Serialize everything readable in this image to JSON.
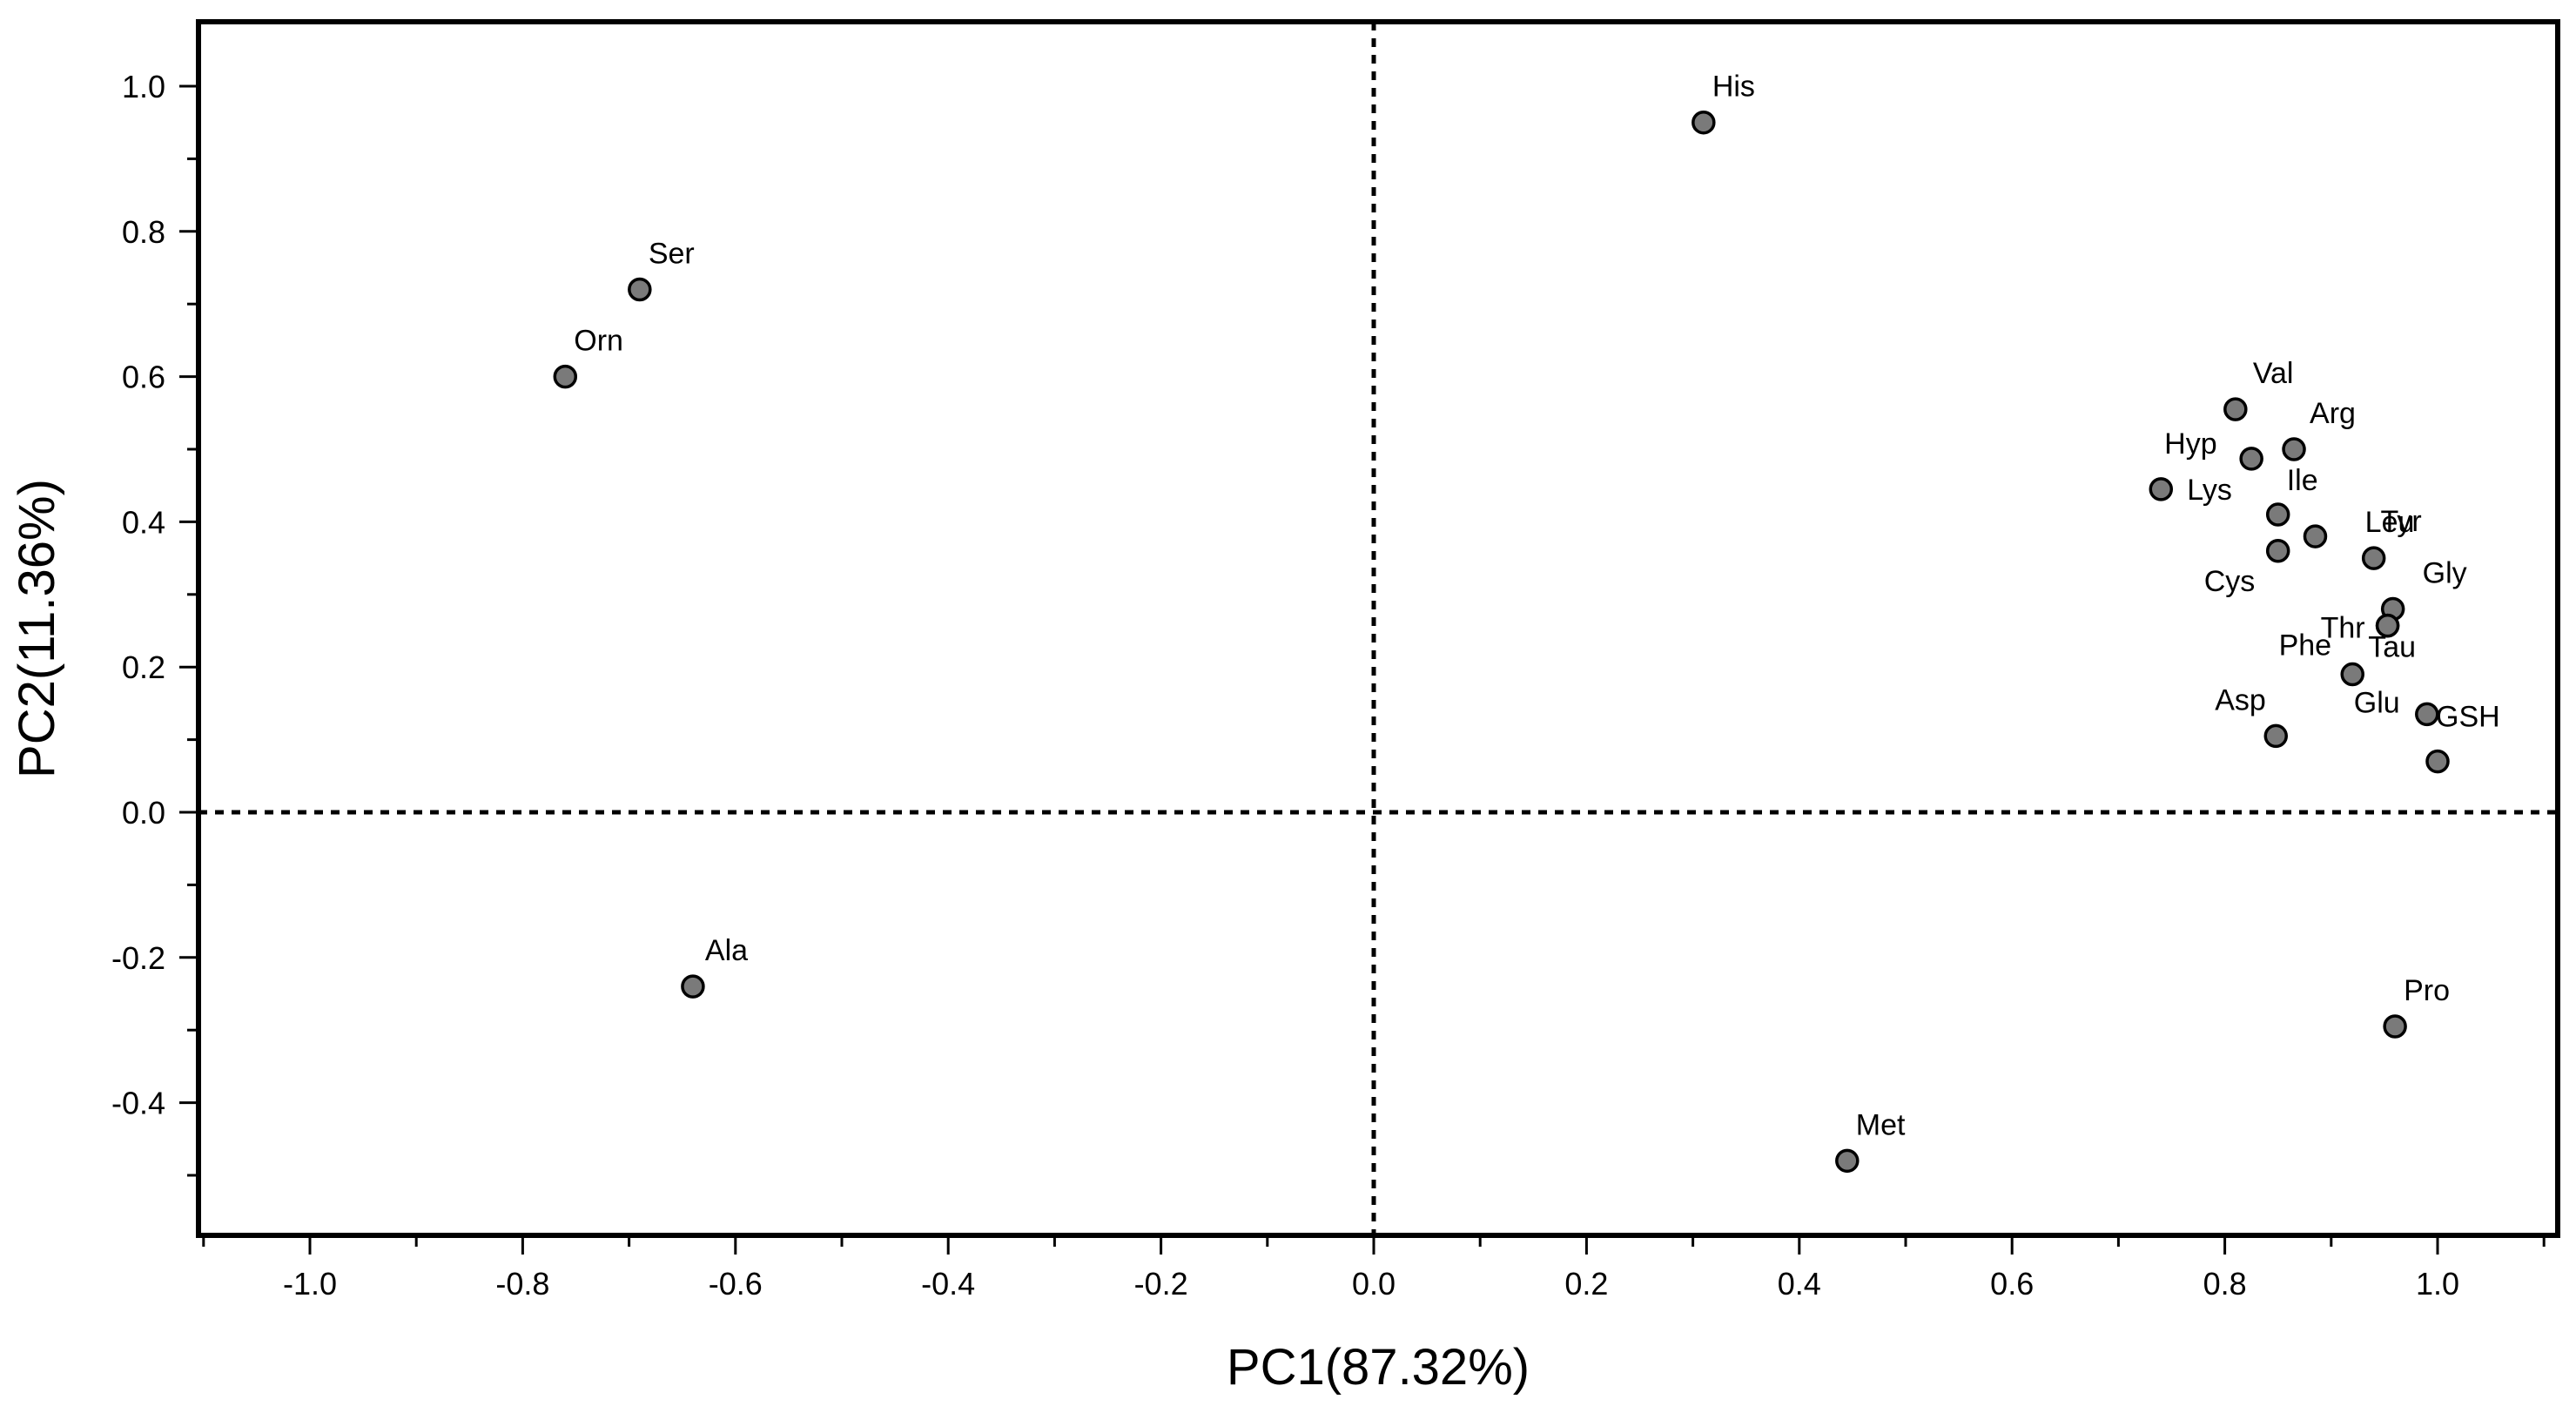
{
  "chart_data": {
    "type": "scatter",
    "xlabel": "PC1(87.32%)",
    "ylabel": "PC2(11.36%)",
    "xlim": [
      -1.1,
      1.1
    ],
    "ylim": [
      -0.58,
      1.08
    ],
    "x_major_ticks": [
      -1.0,
      -0.8,
      -0.6,
      -0.4,
      -0.2,
      0.0,
      0.2,
      0.4,
      0.6,
      0.8,
      1.0
    ],
    "x_tick_labels": [
      "-1.0",
      "-0.8",
      "-0.6",
      "-0.4",
      "-0.2",
      "0.0",
      "0.2",
      "0.4",
      "0.6",
      "0.8",
      "1.0"
    ],
    "y_major_ticks": [
      -0.4,
      -0.2,
      0.0,
      0.2,
      0.4,
      0.6,
      0.8,
      1.0
    ],
    "y_tick_labels": [
      "-0.4",
      "-0.2",
      "0.0",
      "0.2",
      "0.4",
      "0.6",
      "0.8",
      "1.0"
    ],
    "reference_lines": {
      "x": 0,
      "y": 0,
      "style": "dotted"
    },
    "grid": false,
    "legend": "none",
    "marker_color": "#7a7a7a",
    "points": [
      {
        "label": "His",
        "x": 0.31,
        "y": 0.95
      },
      {
        "label": "Ser",
        "x": -0.69,
        "y": 0.72
      },
      {
        "label": "Orn",
        "x": -0.76,
        "y": 0.6
      },
      {
        "label": "Val",
        "x": 0.81,
        "y": 0.555
      },
      {
        "label": "Arg",
        "x": 0.865,
        "y": 0.5
      },
      {
        "label": "Hyp",
        "x": 0.825,
        "y": 0.487
      },
      {
        "label": "Tyr",
        "x": 0.885,
        "y": 0.38
      },
      {
        "label": "Lys",
        "x": 0.74,
        "y": 0.445
      },
      {
        "label": "Ile",
        "x": 0.85,
        "y": 0.41
      },
      {
        "label": "Leu",
        "x": 0.94,
        "y": 0.35
      },
      {
        "label": "Cys",
        "x": 0.85,
        "y": 0.36
      },
      {
        "label": "Gly",
        "x": 0.958,
        "y": 0.28
      },
      {
        "label": "Thr",
        "x": 0.953,
        "y": 0.257
      },
      {
        "label": "Tau",
        "x": 0.92,
        "y": 0.19
      },
      {
        "label": "Asp",
        "x": 0.848,
        "y": 0.105
      },
      {
        "label": "Glu",
        "x": 0.99,
        "y": 0.135
      },
      {
        "label": "GSH",
        "x": 1.0,
        "y": 0.07
      },
      {
        "label": "Phe",
        "x": 0.953,
        "y": 0.257
      },
      {
        "label": "Pro",
        "x": 0.96,
        "y": -0.295
      },
      {
        "label": "Ala",
        "x": -0.64,
        "y": -0.24
      },
      {
        "label": "Met",
        "x": 0.445,
        "y": -0.48
      }
    ]
  }
}
